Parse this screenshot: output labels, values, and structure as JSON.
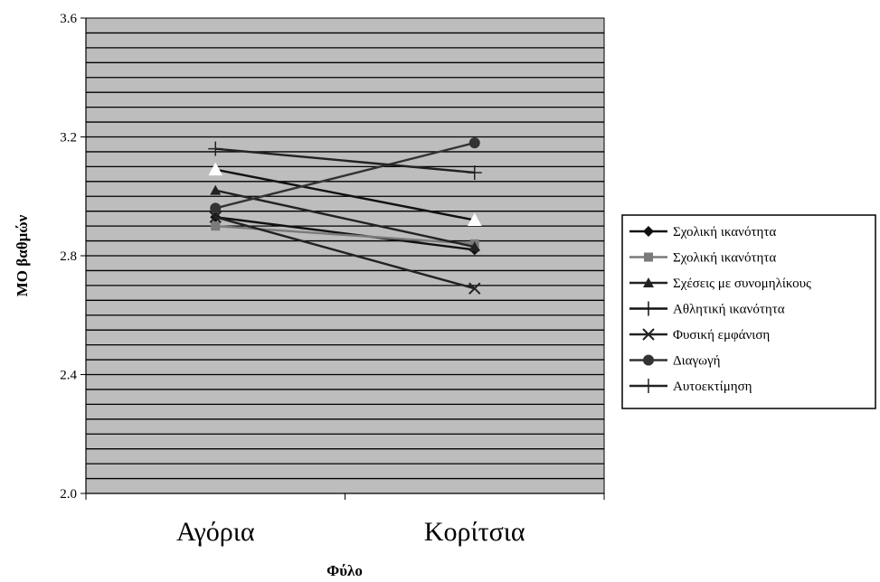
{
  "chart_data": {
    "type": "line",
    "title": "",
    "xlabel": "Φύλο",
    "ylabel": "ΜΟ βαθμών",
    "categories": [
      "Αγόρια",
      "Κορίτσια"
    ],
    "ylim": [
      2.0,
      3.6
    ],
    "yticks": [
      "2.0",
      "2.4",
      "2.8",
      "3.2",
      "3.6"
    ],
    "grid": true,
    "legend_position": "right",
    "series": [
      {
        "name": "Σχολική ικανότητα",
        "values": [
          2.93,
          2.82
        ],
        "marker": "diamond",
        "color": "#111111"
      },
      {
        "name": "Σχολική ικανότητα",
        "values": [
          2.9,
          2.84
        ],
        "marker": "square",
        "color": "#7a7a7a"
      },
      {
        "name": "Σχέσεις με συνομηλίκους",
        "values": [
          3.02,
          2.83
        ],
        "marker": "triangle",
        "color": "#222222"
      },
      {
        "name": "Αθλητική ικανότητα",
        "values": [
          3.09,
          2.92
        ],
        "marker": "triangle-white",
        "color": "#111111"
      },
      {
        "name": "Φυσική εμφάνιση",
        "values": [
          2.93,
          2.69
        ],
        "marker": "x",
        "color": "#222222"
      },
      {
        "name": "Διαγωγή",
        "values": [
          2.96,
          3.18
        ],
        "marker": "circle",
        "color": "#333333"
      },
      {
        "name": "Αυτοεκτίμηση",
        "values": [
          3.16,
          3.08
        ],
        "marker": "plus",
        "color": "#222222"
      }
    ]
  }
}
